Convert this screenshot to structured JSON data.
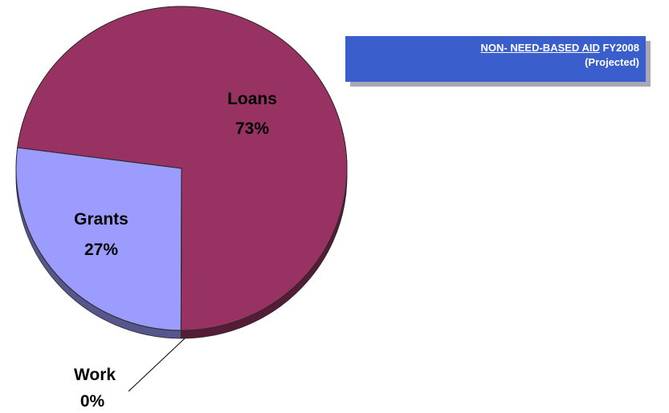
{
  "title": {
    "underlined": "NON- NEED-BASED AID",
    "rest": " FY2008",
    "sub": "(Projected)"
  },
  "chart_data": {
    "type": "pie",
    "title": "NON- NEED-BASED AID FY2008 (Projected)",
    "slices": [
      {
        "label": "Loans",
        "value": 73,
        "percent_label": "73%",
        "color": "#983263"
      },
      {
        "label": "Grants",
        "value": 27,
        "percent_label": "27%",
        "color": "#9c9cff"
      },
      {
        "label": "Work",
        "value": 0,
        "percent_label": "0%",
        "color": "#ffffff"
      }
    ],
    "style": "3d-tilted"
  }
}
